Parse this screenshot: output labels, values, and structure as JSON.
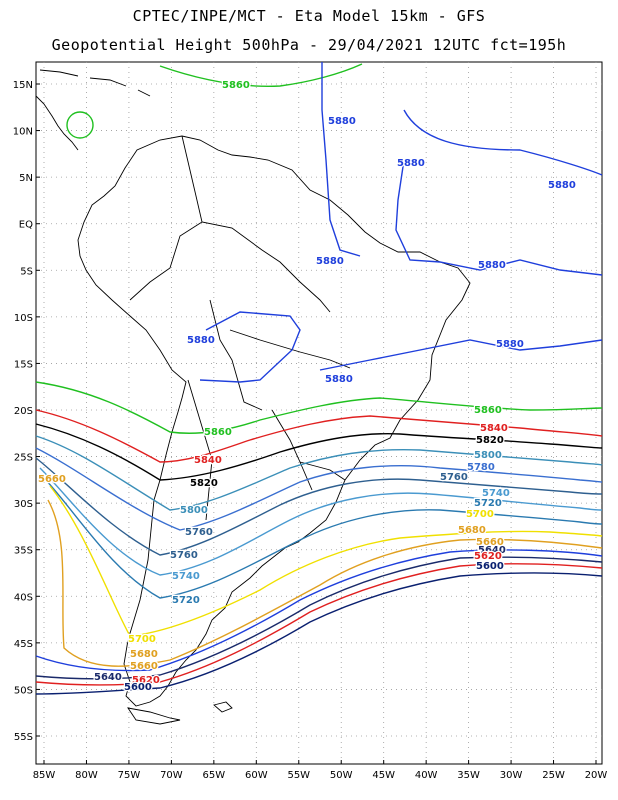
{
  "title": {
    "line1": "CPTEC/INPE/MCT -  Eta Model 15km - GFS",
    "line2": "Geopotential Height 500hPa - 29/04/2021 12UTC fct=195h"
  },
  "map": {
    "lat_labels": [
      "15N",
      "10N",
      "5N",
      "EQ",
      "5S",
      "10S",
      "15S",
      "20S",
      "25S",
      "30S",
      "35S",
      "40S",
      "45S",
      "50S",
      "55S"
    ],
    "lon_labels": [
      "85W",
      "80W",
      "75W",
      "70W",
      "65W",
      "60W",
      "55W",
      "50W",
      "45W",
      "40W",
      "35W",
      "30W",
      "25W",
      "20W"
    ],
    "colors": {
      "c5880": "#1f3fdc",
      "c5860": "#20c020",
      "c5840": "#e02020",
      "c5820": "#000000",
      "c5800": "#3b8fb8",
      "c5780": "#3a6fd0",
      "c5760": "#2e5f8f",
      "c5740": "#4a9ad0",
      "c5720": "#2a7ab0",
      "c5700": "#f0e000",
      "c5680": "#e0a020",
      "c5660": "#1f3fdc",
      "c5640": "#1a2a6a",
      "c5600": "#0a2070",
      "coast": "#000000"
    }
  },
  "contour_labels": [
    {
      "id": "l5860a",
      "text": "5860"
    },
    {
      "id": "l5880a",
      "text": "5880"
    },
    {
      "id": "l5880b",
      "text": "5880"
    },
    {
      "id": "l5880c",
      "text": "5880"
    },
    {
      "id": "l5880d",
      "text": "5880"
    },
    {
      "id": "l5880e",
      "text": "5880"
    },
    {
      "id": "l5880f",
      "text": "5880"
    },
    {
      "id": "l5880g",
      "text": "5880"
    },
    {
      "id": "l5880h",
      "text": "5880"
    },
    {
      "id": "l5860b",
      "text": "5860"
    },
    {
      "id": "l5860c",
      "text": "5860"
    },
    {
      "id": "l5840a",
      "text": "5840"
    },
    {
      "id": "l5840b",
      "text": "5840"
    },
    {
      "id": "l5820a",
      "text": "5820"
    },
    {
      "id": "l5820b",
      "text": "5820"
    },
    {
      "id": "l5800a",
      "text": "5800"
    },
    {
      "id": "l5800b",
      "text": "5800"
    },
    {
      "id": "l5780a",
      "text": "5780"
    },
    {
      "id": "l5760a",
      "text": "5760"
    },
    {
      "id": "l5760b",
      "text": "5760"
    },
    {
      "id": "l5760c",
      "text": "5760"
    },
    {
      "id": "l5740a",
      "text": "5740"
    },
    {
      "id": "l5740b",
      "text": "5740"
    },
    {
      "id": "l5720a",
      "text": "5720"
    },
    {
      "id": "l5720b",
      "text": "5720"
    },
    {
      "id": "l5700a",
      "text": "5700"
    },
    {
      "id": "l5700b",
      "text": "5700"
    },
    {
      "id": "l5680a",
      "text": "5680"
    },
    {
      "id": "l5680b",
      "text": "5680"
    },
    {
      "id": "l5660a",
      "text": "5660"
    },
    {
      "id": "l5660b",
      "text": "5660"
    },
    {
      "id": "l5660c",
      "text": "5660"
    },
    {
      "id": "l5640a",
      "text": "5640"
    },
    {
      "id": "l5640b",
      "text": "5640"
    },
    {
      "id": "l5620a",
      "text": "5620"
    },
    {
      "id": "l5620b",
      "text": "5620"
    },
    {
      "id": "l5600a",
      "text": "5600"
    },
    {
      "id": "l5600b",
      "text": "5600"
    }
  ]
}
